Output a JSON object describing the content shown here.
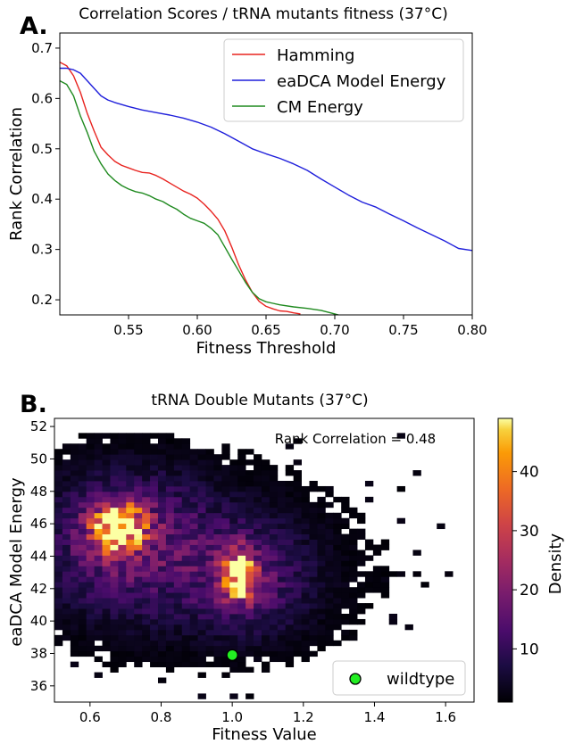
{
  "panel_a_label": "A.",
  "panel_b_label": "B.",
  "chart_data": [
    {
      "type": "line",
      "title": "Correlation Scores / tRNA mutants fitness (37°C)",
      "xlabel": "Fitness Threshold",
      "ylabel": "Rank Correlation",
      "xlim": [
        0.5,
        0.8
      ],
      "ylim": [
        0.17,
        0.73
      ],
      "xticks": [
        0.55,
        0.6,
        0.65,
        0.7,
        0.75,
        0.8
      ],
      "xtick_labels": [
        "0.55",
        "0.60",
        "0.65",
        "0.70",
        "0.75",
        "0.80"
      ],
      "yticks": [
        0.2,
        0.3,
        0.4,
        0.5,
        0.6,
        0.7
      ],
      "ytick_labels": [
        "0.2",
        "0.3",
        "0.4",
        "0.5",
        "0.6",
        "0.7"
      ],
      "legend_position": "top-right",
      "series": [
        {
          "name": "Hamming",
          "color": "#e8231f",
          "x": [
            0.5,
            0.505,
            0.51,
            0.515,
            0.52,
            0.525,
            0.53,
            0.535,
            0.54,
            0.545,
            0.55,
            0.555,
            0.56,
            0.565,
            0.57,
            0.575,
            0.58,
            0.585,
            0.59,
            0.595,
            0.6,
            0.605,
            0.61,
            0.615,
            0.62,
            0.625,
            0.63,
            0.635,
            0.64,
            0.645,
            0.65,
            0.655,
            0.66,
            0.665,
            0.67,
            0.675
          ],
          "y": [
            0.672,
            0.665,
            0.645,
            0.612,
            0.57,
            0.535,
            0.503,
            0.488,
            0.475,
            0.467,
            0.462,
            0.457,
            0.453,
            0.452,
            0.447,
            0.44,
            0.432,
            0.424,
            0.416,
            0.41,
            0.402,
            0.39,
            0.376,
            0.36,
            0.337,
            0.305,
            0.27,
            0.24,
            0.215,
            0.197,
            0.187,
            0.182,
            0.178,
            0.177,
            0.174,
            0.172
          ]
        },
        {
          "name": "eaDCA Model Energy",
          "color": "#1f1fdb",
          "x": [
            0.5,
            0.505,
            0.51,
            0.515,
            0.52,
            0.525,
            0.53,
            0.535,
            0.54,
            0.55,
            0.56,
            0.57,
            0.58,
            0.59,
            0.6,
            0.61,
            0.62,
            0.63,
            0.64,
            0.65,
            0.66,
            0.67,
            0.68,
            0.69,
            0.7,
            0.71,
            0.72,
            0.73,
            0.74,
            0.75,
            0.76,
            0.77,
            0.78,
            0.79,
            0.8
          ],
          "y": [
            0.66,
            0.66,
            0.657,
            0.65,
            0.635,
            0.62,
            0.605,
            0.597,
            0.592,
            0.584,
            0.577,
            0.572,
            0.567,
            0.561,
            0.553,
            0.543,
            0.53,
            0.515,
            0.5,
            0.49,
            0.481,
            0.47,
            0.457,
            0.44,
            0.424,
            0.408,
            0.394,
            0.384,
            0.37,
            0.357,
            0.343,
            0.33,
            0.317,
            0.302,
            0.298
          ]
        },
        {
          "name": "CM Energy",
          "color": "#1f8a1f",
          "x": [
            0.5,
            0.505,
            0.51,
            0.515,
            0.52,
            0.525,
            0.53,
            0.535,
            0.54,
            0.545,
            0.55,
            0.555,
            0.56,
            0.565,
            0.57,
            0.575,
            0.58,
            0.585,
            0.59,
            0.595,
            0.6,
            0.605,
            0.61,
            0.615,
            0.62,
            0.625,
            0.63,
            0.635,
            0.64,
            0.645,
            0.65,
            0.655,
            0.66,
            0.67,
            0.68,
            0.69,
            0.7,
            0.705
          ],
          "y": [
            0.635,
            0.628,
            0.605,
            0.565,
            0.532,
            0.495,
            0.47,
            0.45,
            0.437,
            0.427,
            0.42,
            0.415,
            0.412,
            0.407,
            0.4,
            0.395,
            0.387,
            0.38,
            0.37,
            0.362,
            0.357,
            0.352,
            0.342,
            0.329,
            0.305,
            0.281,
            0.258,
            0.235,
            0.215,
            0.202,
            0.196,
            0.193,
            0.19,
            0.186,
            0.183,
            0.179,
            0.172,
            0.168
          ]
        }
      ]
    },
    {
      "type": "heatmap",
      "title": "tRNA Double Mutants (37°C)",
      "xlabel": "Fitness Value",
      "ylabel": "eaDCA Model Energy",
      "xlim": [
        0.5,
        1.68
      ],
      "ylim": [
        35,
        52.5
      ],
      "xticks": [
        0.6,
        0.8,
        1.0,
        1.2,
        1.4,
        1.6
      ],
      "xtick_labels": [
        "0.6",
        "0.8",
        "1.0",
        "1.2",
        "1.4",
        "1.6"
      ],
      "yticks": [
        36,
        38,
        40,
        42,
        44,
        46,
        48,
        50,
        52
      ],
      "ytick_labels": [
        "36",
        "38",
        "40",
        "42",
        "44",
        "46",
        "48",
        "50",
        "52"
      ],
      "annotation": "Rank Correlation = 0.48",
      "colorbar_label": "Density",
      "colorbar_range": [
        1,
        49
      ],
      "colorbar_ticks": [
        10,
        20,
        30,
        40
      ],
      "colorbar_tick_labels": [
        "10",
        "20",
        "30",
        "40"
      ],
      "colormap": "inferno",
      "bins": {
        "x": 50,
        "y": 50
      },
      "density_peaks": [
        {
          "fitness": 0.68,
          "energy": 45.8,
          "density": 49
        },
        {
          "fitness": 1.02,
          "energy": 42.8,
          "density": 46
        }
      ],
      "wildtype": {
        "label": "wildtype",
        "fitness": 1.0,
        "energy": 37.9,
        "color": "#22ee22"
      },
      "legend_position": "bottom-right"
    }
  ]
}
